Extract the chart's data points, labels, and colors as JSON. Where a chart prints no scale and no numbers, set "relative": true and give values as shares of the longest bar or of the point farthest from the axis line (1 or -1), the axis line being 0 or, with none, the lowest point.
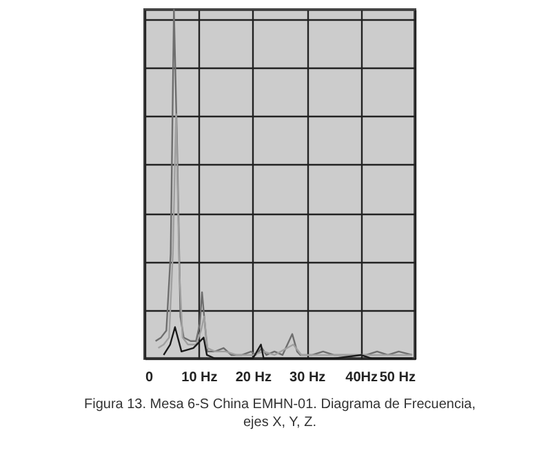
{
  "chart_data": {
    "type": "line",
    "relative": true,
    "title": "Figura 13.  Mesa 6-S China EMHN-01. Diagrama de Frecuencia, ejes X, Y, Z.",
    "xlim": [
      0,
      50
    ],
    "xticks": [
      0,
      {
        "value": 10,
        "label": "10 Hz"
      },
      {
        "value": 20,
        "label": "20 Hz"
      },
      {
        "value": 30,
        "label": "30 Hz"
      },
      {
        "value": 40,
        "label": "40Hz"
      },
      {
        "value": 50,
        "label": "50 Hz"
      }
    ],
    "grid": true,
    "marker": "none",
    "line_style": "solid",
    "series": [
      {
        "color": "#6e6e6e",
        "x": [
          2,
          3,
          4,
          4.8,
          5.4,
          6.0,
          6.6,
          7.2,
          8.5,
          9.5,
          10.2,
          10.6,
          11.0,
          11.6,
          13,
          14.6,
          16,
          18,
          19.7,
          20.5,
          21.7,
          22.5,
          24,
          25.5,
          27.3,
          28.2,
          28.8,
          31,
          33,
          35,
          37,
          39,
          41,
          43,
          45,
          47,
          49.5
        ],
        "values": [
          0.05,
          0.06,
          0.08,
          0.3,
          1.0,
          0.6,
          0.12,
          0.06,
          0.05,
          0.05,
          0.1,
          0.19,
          0.12,
          0.02,
          0.02,
          0.03,
          0.01,
          0.01,
          0.02,
          0.01,
          0.03,
          0.01,
          0.02,
          0.01,
          0.07,
          0.02,
          0.01,
          0.01,
          0.02,
          0.01,
          0.01,
          0.01,
          0.01,
          0.02,
          0.01,
          0.02,
          0.01
        ]
      },
      {
        "color": "#a0a0a0",
        "x": [
          2.5,
          3.5,
          4.5,
          5.2,
          5.8,
          6.4,
          7,
          8,
          9.5,
          10.4,
          11,
          11.6,
          13,
          15,
          17,
          20,
          22,
          24,
          27.5,
          29,
          32,
          36,
          40,
          44,
          49.5
        ],
        "values": [
          0.03,
          0.04,
          0.06,
          0.3,
          0.7,
          0.25,
          0.06,
          0.04,
          0.04,
          0.08,
          0.12,
          0.03,
          0.02,
          0.02,
          0.01,
          0.01,
          0.02,
          0.01,
          0.04,
          0.01,
          0.01,
          0.01,
          0.01,
          0.01,
          0.01
        ]
      },
      {
        "color": "#1a1a1a",
        "x": [
          3.5,
          4.7,
          5.6,
          6.8,
          9,
          10.9,
          11.5,
          13,
          16,
          20,
          21.5,
          22,
          25,
          30,
          35,
          40,
          42,
          45,
          49.5
        ],
        "values": [
          0.01,
          0.04,
          0.09,
          0.02,
          0.03,
          0.06,
          0.01,
          0.0,
          0.0,
          0.0,
          0.04,
          0.0,
          0.0,
          0.0,
          0.0,
          0.01,
          0.0,
          0.0,
          0.0
        ]
      }
    ]
  }
}
